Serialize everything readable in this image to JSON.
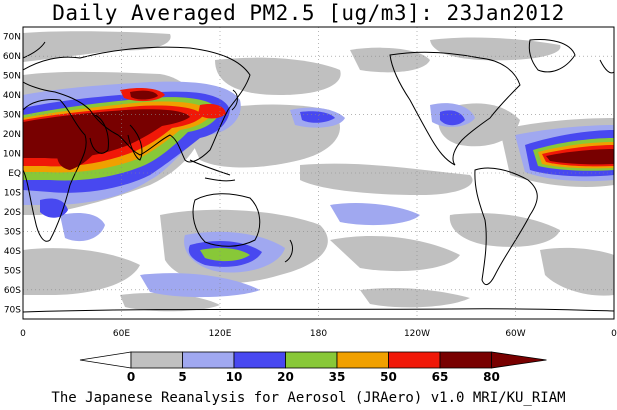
{
  "title": "Daily Averaged PM2.5 [ug/m3]: 23Jan2012",
  "footer": "The Japanese Reanalysis for Aerosol (JRAero) v1.0 MRI/KU_RIAM",
  "lat_labels": [
    "70N",
    "60N",
    "50N",
    "40N",
    "30N",
    "20N",
    "10N",
    "EQ",
    "10S",
    "20S",
    "30S",
    "40S",
    "50S",
    "60S",
    "70S"
  ],
  "lon_labels": [
    "0",
    "60E",
    "120E",
    "180",
    "120W",
    "60W",
    "0"
  ],
  "colorbar": {
    "ticks": [
      "0",
      "5",
      "10",
      "20",
      "35",
      "50",
      "65",
      "80"
    ],
    "colors": [
      "#ffffff",
      "#c0c0c0",
      "#a0a8f0",
      "#4848f0",
      "#88c838",
      "#f0a000",
      "#f01808",
      "#780000"
    ]
  },
  "chart_data": {
    "type": "heatmap",
    "title": "Daily Averaged PM2.5 [ug/m3]: 23Jan2012",
    "x_range": [
      0,
      360
    ],
    "y_range": [
      -75,
      75
    ],
    "levels": [
      0,
      5,
      10,
      20,
      35,
      50,
      65,
      80
    ],
    "level_colors": [
      "#ffffff",
      "#c0c0c0",
      "#a0a8f0",
      "#4848f0",
      "#88c838",
      "#f0a000",
      "#f01808",
      "#780000"
    ],
    "grid": true
  }
}
